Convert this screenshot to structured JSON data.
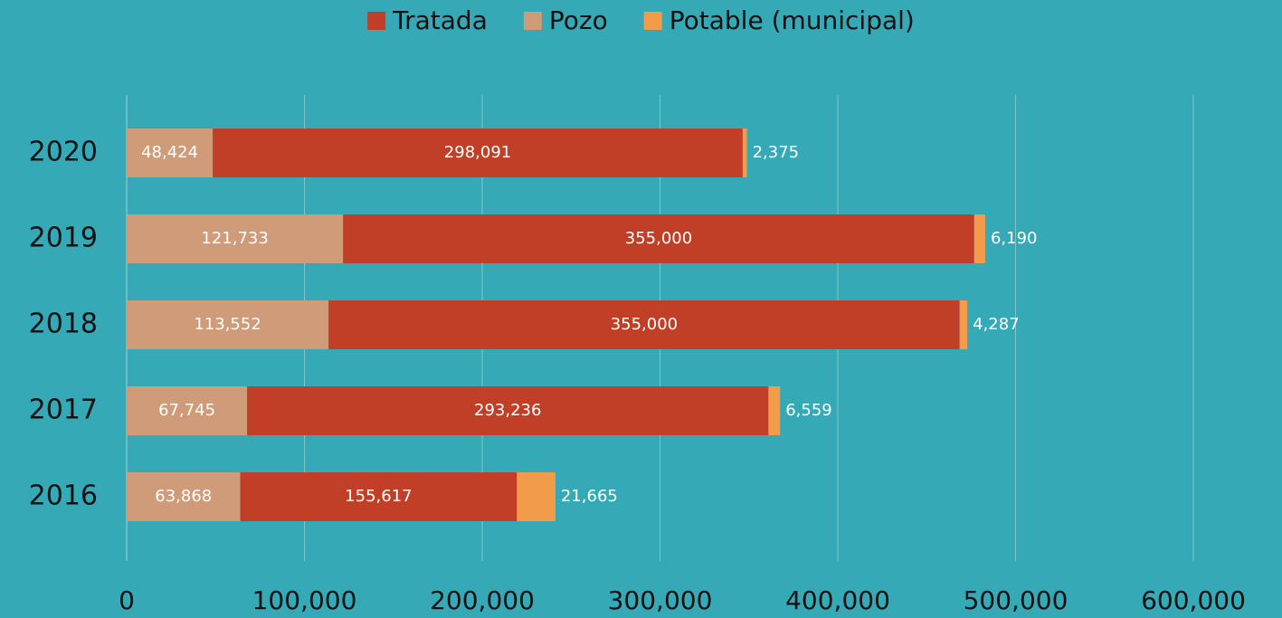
{
  "chart_data": {
    "type": "stacked-barh",
    "categories": [
      "2020",
      "2019",
      "2018",
      "2017",
      "2016"
    ],
    "series": [
      {
        "name": "Tratada",
        "color": "#c13f26",
        "values": [
          298091,
          355000,
          355000,
          293236,
          155617
        ],
        "value_labels": [
          "298,091",
          "355,000",
          "355,000",
          "293,236",
          "155,617"
        ]
      },
      {
        "name": "Pozo",
        "color": "#cf9b79",
        "values": [
          48424,
          121733,
          113552,
          67745,
          63868
        ],
        "value_labels": [
          "48,424",
          "121,733",
          "113,552",
          "67,745",
          "63,868"
        ]
      },
      {
        "name": "Potable (municipal)",
        "color": "#f29c4b",
        "values": [
          2375,
          6190,
          4287,
          6559,
          21665
        ],
        "value_labels": [
          "2,375",
          "6,190",
          "4,287",
          "6,559",
          "21,665"
        ]
      }
    ],
    "xlim": [
      0,
      600000
    ],
    "xticks": [
      0,
      {
        "value": 100000,
        "label": "100,000"
      },
      {
        "value": 200000,
        "label": "200,000"
      },
      {
        "value": 300000,
        "label": "300,000"
      },
      {
        "value": 400000,
        "label": "400,000"
      },
      {
        "value": 500000,
        "label": "500,000"
      },
      {
        "value": 600000,
        "label": "600,000"
      }
    ],
    "grid": true,
    "legend": "top"
  }
}
